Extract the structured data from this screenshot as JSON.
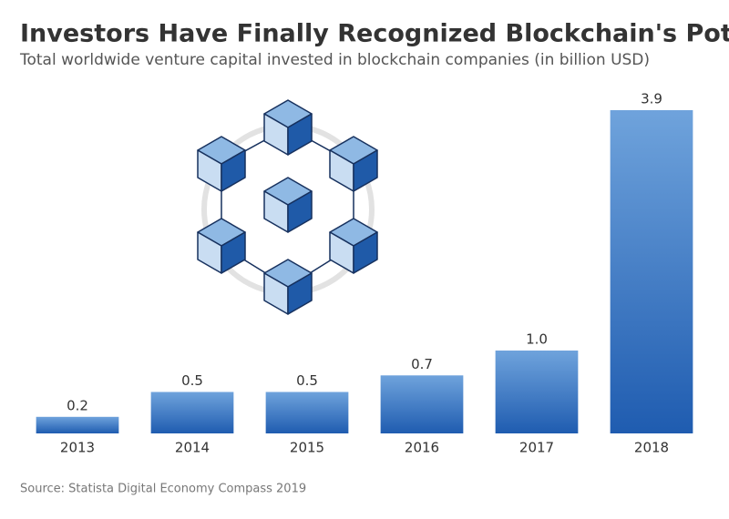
{
  "chart_data": {
    "type": "bar",
    "title": "Investors Have Finally Recognized Blockchain's Potential",
    "subtitle": "Total worldwide venture capital invested in blockchain companies (in billion USD)",
    "categories": [
      "2013",
      "2014",
      "2015",
      "2016",
      "2017",
      "2018"
    ],
    "values": [
      0.2,
      0.5,
      0.5,
      0.7,
      1.0,
      3.9
    ],
    "value_labels": [
      "0.2",
      "0.5",
      "0.5",
      "0.7",
      "1.0",
      "3.9"
    ],
    "color": "#2f6fc0",
    "source": "Source: Statista Digital Economy Compass 2019"
  }
}
